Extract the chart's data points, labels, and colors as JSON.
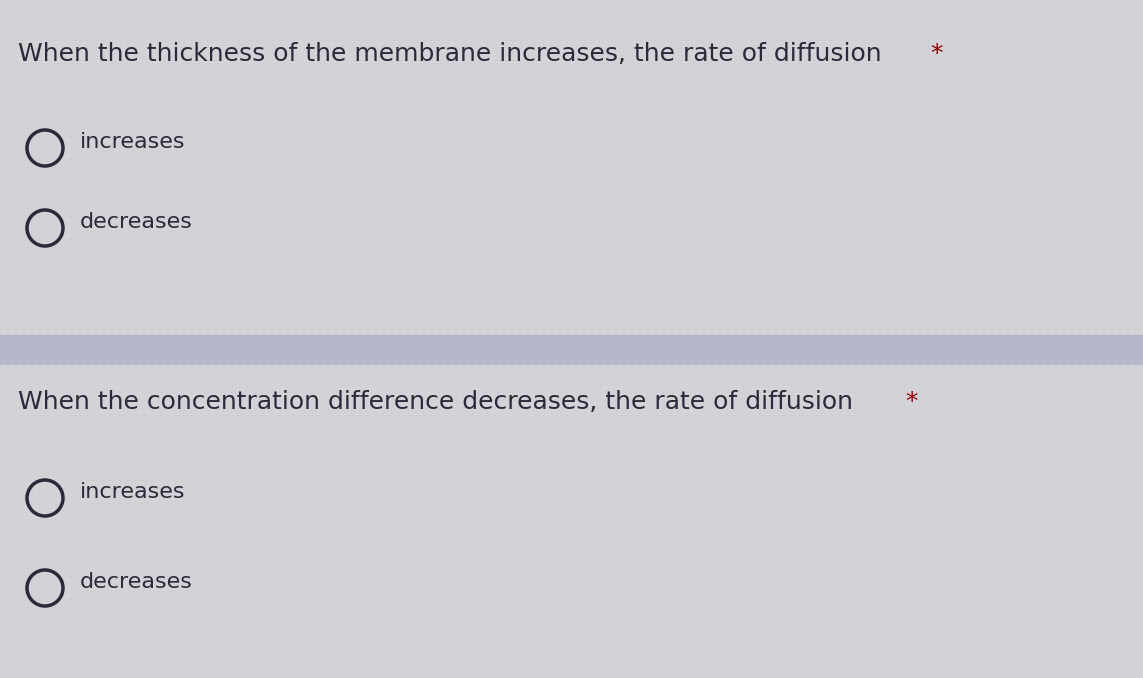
{
  "bg_color": "#d4d4d8",
  "divider_color": "#b8b8cc",
  "question1": "When the thickness of the membrane increases, the rate of diffusion ",
  "question1_star": "*",
  "question2": "When the concentration difference decreases, the rate of diffusion ",
  "question2_star": "*",
  "options1": [
    "increases",
    "decreases"
  ],
  "options2": [
    "increases",
    "decreases"
  ],
  "question_fontsize": 18,
  "option_fontsize": 16,
  "text_color": "#2a2a3a",
  "star_color": "#8b0000",
  "circle_edgecolor": "#2a2a3a",
  "circle_linewidth": 2.5,
  "fig_width": 11.43,
  "fig_height": 6.78,
  "dpi": 100
}
